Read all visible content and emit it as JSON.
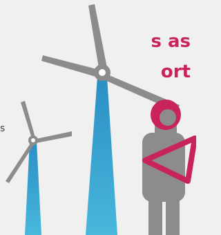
{
  "heading": {
    "lines": [
      "s as",
      "ort"
    ]
  },
  "body": {
    "fragment": "s"
  }
}
